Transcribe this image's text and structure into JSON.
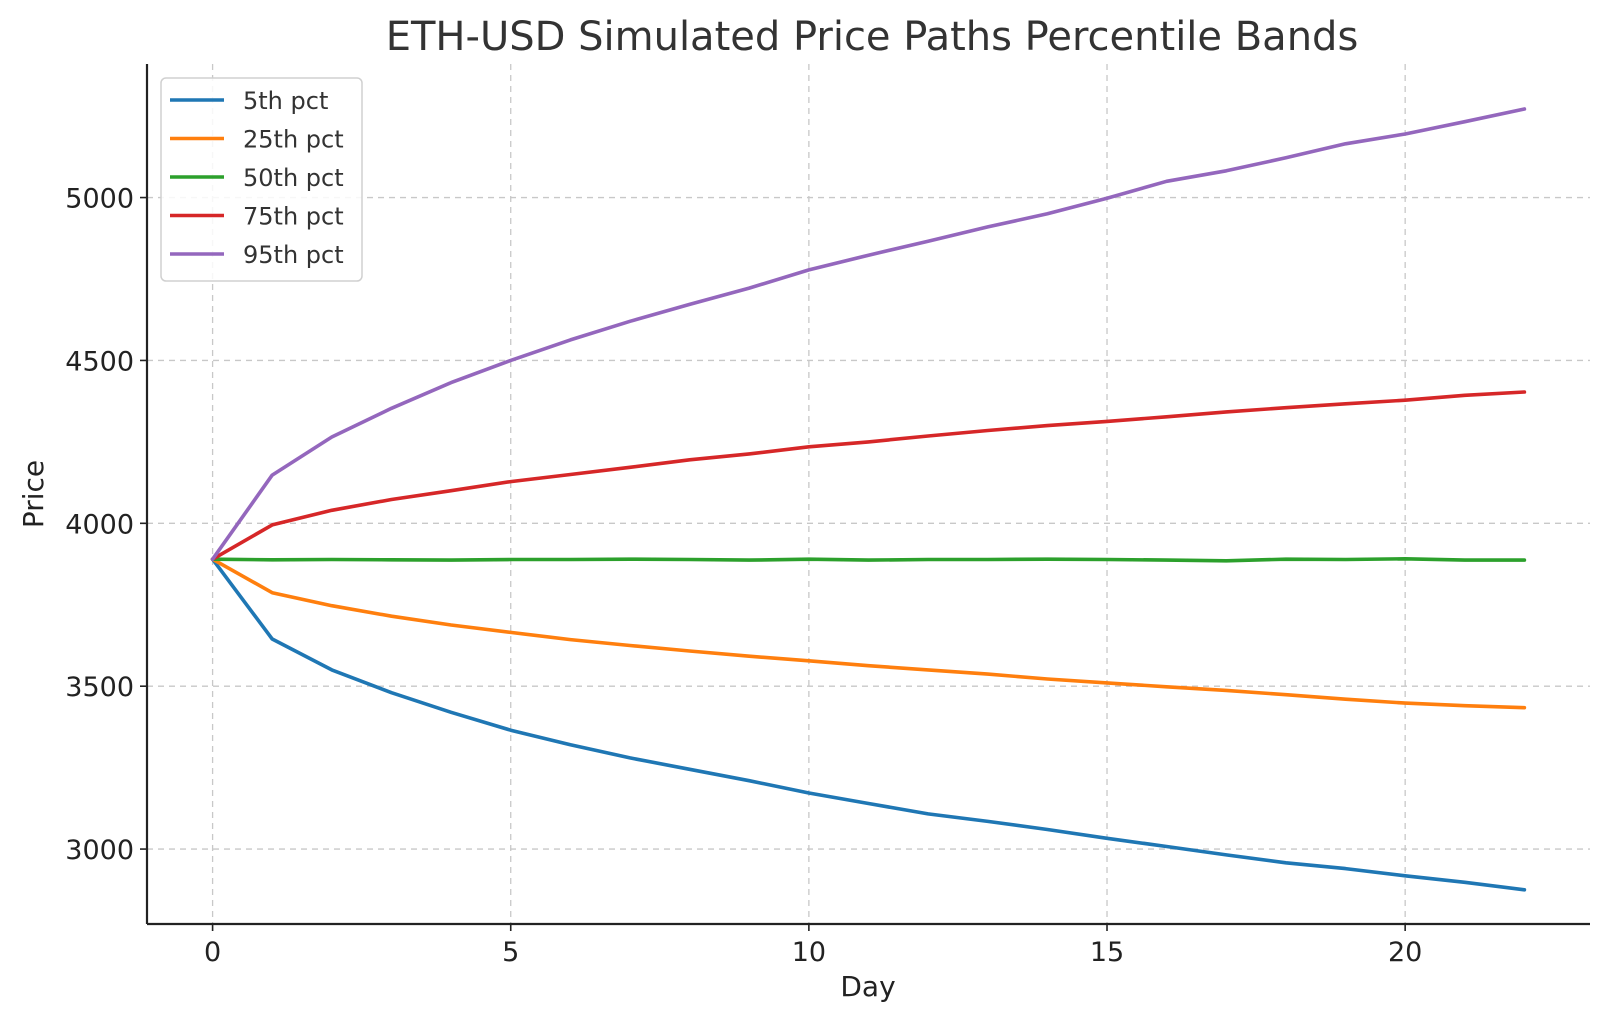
{
  "chart_data": {
    "type": "line",
    "title": "ETH-USD Simulated Price Paths Percentile Bands",
    "xlabel": "Day",
    "ylabel": "Price",
    "xlim": [
      -1.1,
      23.1
    ],
    "ylim": [
      2770,
      5410
    ],
    "xticks": [
      0,
      5,
      10,
      15,
      20
    ],
    "yticks": [
      3000,
      3500,
      4000,
      4500,
      5000
    ],
    "grid": true,
    "legend": "top-left",
    "x": [
      0,
      1,
      2,
      3,
      4,
      5,
      6,
      7,
      8,
      9,
      10,
      11,
      12,
      13,
      14,
      15,
      16,
      17,
      18,
      19,
      20,
      21,
      22
    ],
    "series": [
      {
        "name": "5th pct",
        "color": "#1f77b4",
        "values": [
          3890,
          3645,
          3550,
          3480,
          3420,
          3365,
          3320,
          3280,
          3245,
          3210,
          3172,
          3140,
          3108,
          3085,
          3060,
          3033,
          3008,
          2982,
          2958,
          2940,
          2918,
          2898,
          2875
        ]
      },
      {
        "name": "25th pct",
        "color": "#ff7f0e",
        "values": [
          3890,
          3787,
          3747,
          3715,
          3688,
          3665,
          3643,
          3625,
          3608,
          3592,
          3578,
          3563,
          3550,
          3537,
          3522,
          3510,
          3498,
          3487,
          3474,
          3460,
          3448,
          3440,
          3434
        ]
      },
      {
        "name": "50th pct",
        "color": "#2ca02c",
        "values": [
          3890,
          3888,
          3889,
          3888,
          3887,
          3889,
          3889,
          3890,
          3889,
          3887,
          3890,
          3887,
          3889,
          3889,
          3890,
          3889,
          3887,
          3885,
          3890,
          3889,
          3891,
          3887,
          3887
        ]
      },
      {
        "name": "75th pct",
        "color": "#d62728",
        "values": [
          3890,
          3995,
          4040,
          4073,
          4100,
          4128,
          4150,
          4172,
          4195,
          4213,
          4235,
          4250,
          4268,
          4285,
          4300,
          4313,
          4327,
          4342,
          4355,
          4367,
          4378,
          4393,
          4403
        ]
      },
      {
        "name": "95th pct",
        "color": "#9467bd",
        "values": [
          3890,
          4148,
          4265,
          4353,
          4432,
          4500,
          4563,
          4620,
          4672,
          4722,
          4778,
          4823,
          4866,
          4910,
          4950,
          4998,
          5050,
          5082,
          5122,
          5165,
          5195,
          5233,
          5272
        ]
      }
    ]
  }
}
